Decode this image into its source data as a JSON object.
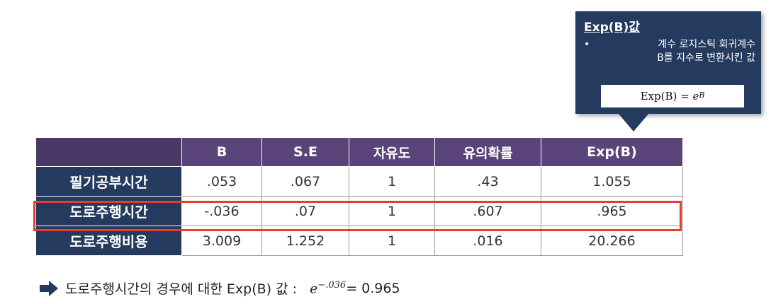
{
  "callout": {
    "title": "Exp(B)값",
    "bullet_mark": "•",
    "bullet_line1": "계수 로지스틱 회귀계수",
    "bullet_line2": "B를 지수로 변환시킨 값",
    "formula_left": "Exp(B) = ",
    "formula_base": "e",
    "formula_exp": "B"
  },
  "table": {
    "corner": "",
    "columns": [
      "B",
      "S.E",
      "자유도",
      "유의확률",
      "Exp(B)"
    ],
    "rows": [
      {
        "label": "필기공부시간",
        "cells": [
          ".053",
          ".067",
          "1",
          ".43",
          "1.055"
        ]
      },
      {
        "label": "도로주행시간",
        "cells": [
          "-.036",
          ".07",
          "1",
          ".607",
          ".965"
        ]
      },
      {
        "label": "도로주행비용",
        "cells": [
          "3.009",
          "1.252",
          "1",
          ".016",
          "20.266"
        ]
      }
    ],
    "highlight_color": "#e53c2e"
  },
  "note": {
    "icon": "right-arrow-icon",
    "text": "도로주행시간의 경우에 대한 Exp(B) 값 :",
    "base": "e",
    "exponent": "−.036",
    "result": "= 0.965"
  },
  "colors": {
    "navy": "#243a5e",
    "purple_header": "#5b4479"
  }
}
